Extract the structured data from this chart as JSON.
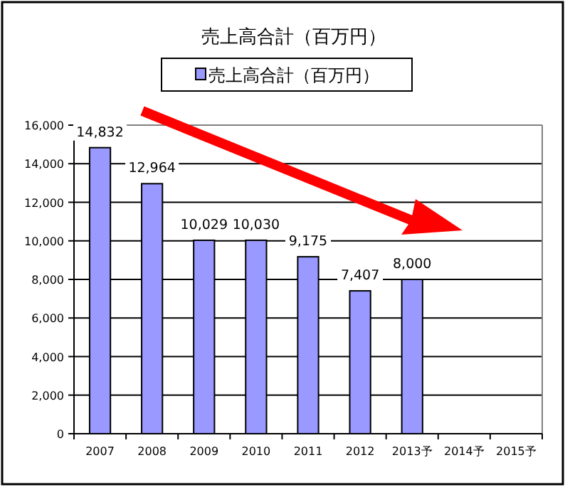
{
  "chart_data": {
    "type": "bar",
    "title": "売上高合計（百万円）",
    "categories": [
      "2007",
      "2008",
      "2009",
      "2010",
      "2011",
      "2012",
      "2013予",
      "2014予",
      "2015予"
    ],
    "series": [
      {
        "name": "売上高合計（百万円）",
        "color": "#9999ff",
        "values": [
          14832,
          12964,
          10029,
          10030,
          9175,
          7407,
          8000,
          null,
          null
        ],
        "value_labels": [
          "14,832",
          "12,964",
          "10,029",
          "10,030",
          "9,175",
          "7,407",
          "8,000",
          null,
          null
        ]
      }
    ],
    "ylim": [
      0,
      16000
    ],
    "yticks": [
      {
        "value": 0,
        "label": "0"
      },
      {
        "value": 2000,
        "label": "2,000"
      },
      {
        "value": 4000,
        "label": "4,000"
      },
      {
        "value": 6000,
        "label": "6,000"
      },
      {
        "value": 8000,
        "label": "8,000"
      },
      {
        "value": 10000,
        "label": "10,000"
      },
      {
        "value": 12000,
        "label": "12,000"
      },
      {
        "value": 14000,
        "label": "14,000"
      },
      {
        "value": 16000,
        "label": "16,000"
      }
    ],
    "grid": "y",
    "legend": "top"
  }
}
